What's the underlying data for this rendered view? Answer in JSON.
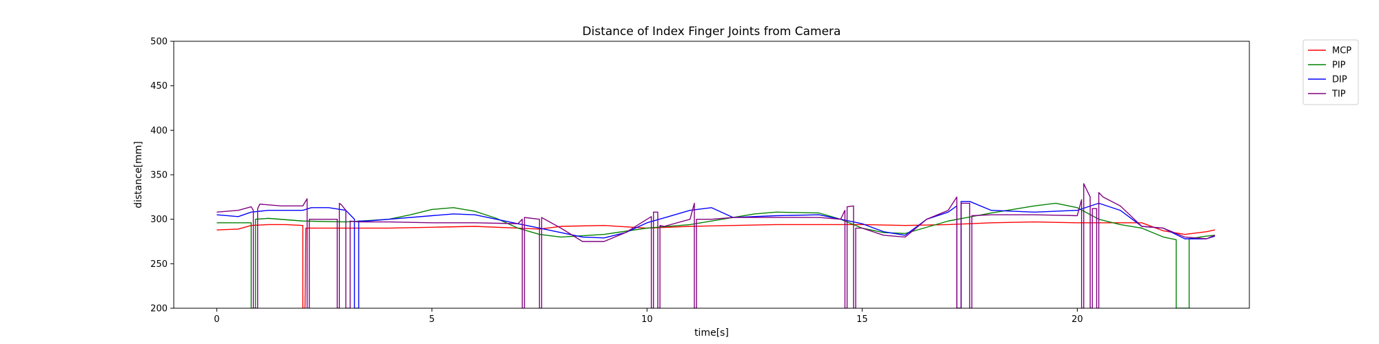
{
  "chart_data": {
    "type": "line",
    "title": "Distance of Index Finger Joints from Camera",
    "xlabel": "time[s]",
    "ylabel": "distance[mm]",
    "xlim": [
      -1,
      24
    ],
    "ylim": [
      200,
      500
    ],
    "xticks": [
      0,
      5,
      10,
      15,
      20
    ],
    "yticks": [
      200,
      250,
      300,
      350,
      400,
      450,
      500
    ],
    "grid": false,
    "legend_position": "outside-top-right",
    "series": [
      {
        "name": "MCP",
        "color": "#ff0000",
        "x": [
          0,
          0.5,
          0.8,
          1.2,
          1.6,
          2.0,
          2.0,
          2.05,
          2.07,
          2.1,
          2.5,
          3,
          4,
          5,
          6,
          7,
          7.5,
          8,
          9,
          10,
          11,
          12,
          13,
          14,
          15,
          16,
          17,
          18,
          19,
          20,
          21,
          21.5,
          22,
          22.5,
          23,
          23.2
        ],
        "y": [
          288,
          289,
          293,
          294,
          294,
          293,
          200,
          200,
          290,
          290,
          290,
          290,
          290,
          291,
          292,
          290,
          289,
          292,
          293,
          290,
          292,
          293,
          294,
          294,
          294,
          293,
          294,
          296,
          297,
          296,
          296,
          296,
          287,
          283,
          286,
          288
        ]
      },
      {
        "name": "PIP",
        "color": "#008000",
        "x": [
          0,
          0.5,
          0.8,
          0.8,
          0.9,
          0.9,
          1.2,
          2,
          3,
          4,
          4.5,
          5,
          5.5,
          6,
          6.5,
          7,
          7.5,
          8,
          9,
          10,
          11,
          12,
          12.5,
          13,
          14,
          14.5,
          15,
          15.5,
          16,
          17,
          18,
          19,
          19.5,
          20,
          20.5,
          21,
          21.5,
          22,
          22.3,
          22.3,
          22.6,
          22.6,
          23,
          23.2
        ],
        "y": [
          296,
          296,
          296,
          200,
          200,
          300,
          301,
          298,
          297,
          300,
          305,
          311,
          313,
          309,
          301,
          290,
          283,
          280,
          283,
          290,
          294,
          302,
          306,
          308,
          307,
          300,
          290,
          285,
          284,
          298,
          307,
          315,
          318,
          313,
          300,
          294,
          290,
          280,
          277,
          200,
          200,
          278,
          281,
          282
        ]
      },
      {
        "name": "DIP",
        "color": "#0000ff",
        "x": [
          0,
          0.5,
          0.8,
          1.2,
          1.6,
          2.0,
          2.2,
          2.6,
          3.0,
          3.2,
          3.2,
          3.3,
          3.3,
          3.5,
          4,
          5,
          5.5,
          6,
          7,
          7.5,
          8,
          8.5,
          9,
          9.5,
          10,
          10.5,
          11,
          11.5,
          12,
          13,
          14,
          14.5,
          15,
          15.5,
          16,
          16.5,
          17,
          17.2,
          17.2,
          17.3,
          17.3,
          17.5,
          18,
          19,
          20,
          20.5,
          21,
          21.5,
          22,
          22.5,
          23,
          23.2
        ],
        "y": [
          305,
          303,
          308,
          310,
          310,
          310,
          313,
          313,
          310,
          300,
          200,
          200,
          298,
          298,
          300,
          304,
          306,
          305,
          295,
          290,
          285,
          280,
          279,
          285,
          296,
          303,
          310,
          313,
          302,
          304,
          305,
          300,
          295,
          286,
          282,
          300,
          308,
          315,
          200,
          200,
          320,
          320,
          310,
          308,
          310,
          318,
          310,
          292,
          290,
          278,
          278,
          281
        ]
      },
      {
        "name": "TIP",
        "color": "#800080",
        "x": [
          0,
          0.5,
          0.8,
          0.85,
          0.85,
          0.95,
          0.95,
          1.0,
          1.5,
          2.0,
          2.1,
          2.1,
          2.15,
          2.15,
          2.3,
          2.8,
          2.8,
          2.85,
          2.85,
          2.9,
          3.0,
          3.0,
          3.1,
          3.1,
          3.3,
          4,
          5,
          6,
          7,
          7.1,
          7.1,
          7.15,
          7.15,
          7.5,
          7.5,
          7.55,
          7.55,
          8,
          8.5,
          9,
          9.5,
          10,
          10.1,
          10.1,
          10.15,
          10.15,
          10.25,
          10.25,
          10.3,
          10.3,
          10.4,
          11,
          11.1,
          11.1,
          11.15,
          11.15,
          11.5,
          12,
          13,
          14,
          14.5,
          14.6,
          14.6,
          14.65,
          14.65,
          14.8,
          14.8,
          14.85,
          14.85,
          15,
          15.5,
          16,
          16.5,
          17,
          17.2,
          17.2,
          17.3,
          17.3,
          17.5,
          17.5,
          17.55,
          17.55,
          18,
          19,
          20,
          20.1,
          20.1,
          20.15,
          20.15,
          20.3,
          20.3,
          20.35,
          20.35,
          20.45,
          20.45,
          20.5,
          20.5,
          20.6,
          21,
          21.5,
          22,
          22.5,
          23,
          23.2
        ],
        "y": [
          308,
          310,
          314,
          310,
          200,
          200,
          312,
          317,
          315,
          315,
          323,
          200,
          200,
          300,
          300,
          300,
          200,
          200,
          318,
          316,
          310,
          200,
          200,
          298,
          297,
          297,
          296,
          296,
          295,
          300,
          200,
          200,
          302,
          300,
          200,
          200,
          302,
          290,
          275,
          275,
          285,
          300,
          303,
          200,
          200,
          308,
          308,
          200,
          200,
          293,
          292,
          300,
          318,
          200,
          200,
          300,
          300,
          302,
          302,
          302,
          300,
          310,
          200,
          200,
          314,
          315,
          200,
          200,
          290,
          290,
          282,
          280,
          300,
          310,
          325,
          200,
          200,
          318,
          318,
          200,
          200,
          304,
          305,
          305,
          304,
          322,
          200,
          200,
          340,
          325,
          200,
          200,
          312,
          312,
          200,
          200,
          330,
          325,
          315,
          292,
          290,
          280,
          278,
          282
        ]
      }
    ]
  }
}
